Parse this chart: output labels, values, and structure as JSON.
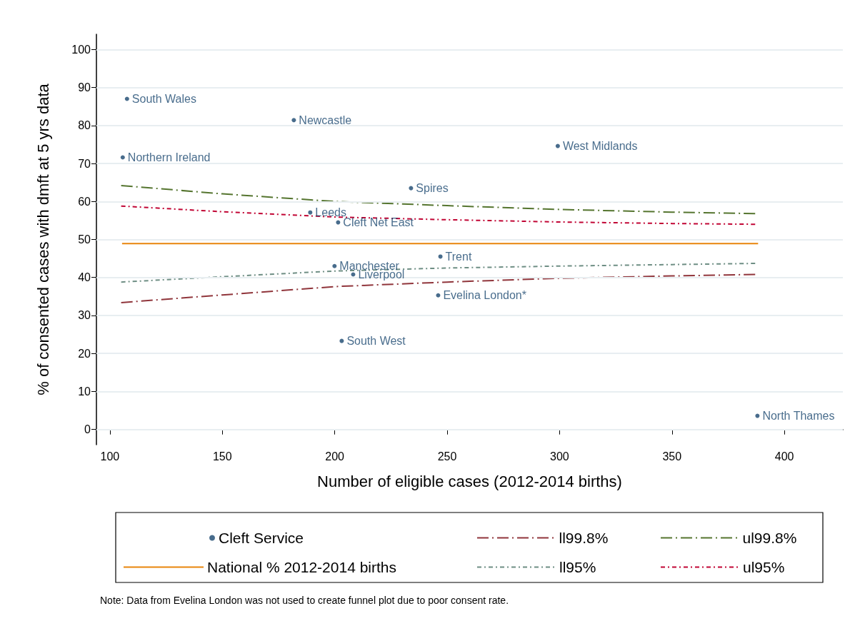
{
  "chart_data": {
    "type": "scatter",
    "xlabel": "Number of eligible cases (2012-2014 births)",
    "ylabel": "% of consented cases with dmft at 5 yrs data",
    "xlim": [
      94,
      426
    ],
    "xticks": [
      100,
      150,
      200,
      250,
      300,
      350,
      400
    ],
    "ylim": [
      -4,
      104
    ],
    "yticks": [
      0,
      10,
      20,
      30,
      40,
      50,
      60,
      70,
      80,
      90,
      100
    ],
    "grid": "y",
    "legend": "bottom",
    "series": [
      {
        "name": "Cleft Service",
        "marker": "circle",
        "color": "#1a476f",
        "x": [
          107.6,
          181.8,
          105.7,
          299.2,
          233.9,
          189.1,
          201.5,
          199.9,
          208.2,
          247,
          246,
          203.1,
          388
        ],
        "values": [
          87.0,
          81.4,
          71.6,
          74.6,
          63.5,
          57.1,
          54.5,
          43.0,
          40.8,
          45.5,
          35.3,
          23.3,
          3.6
        ],
        "value_labels": [
          "South Wales",
          "Newcastle",
          "Northern Ireland",
          "West Midlands",
          "Spires",
          "Leeds",
          "Cleft Net East",
          "Manchester",
          "Liverpool",
          "Trent",
          "Evelina London*",
          "South West",
          "North Thames"
        ]
      },
      {
        "name": "National % 2012-2014 births",
        "type": "line",
        "color": "#e8850c",
        "line_style": "solid",
        "x": [
          105.4,
          388.3
        ],
        "values": [
          48.9,
          48.9
        ]
      },
      {
        "name": "ll99.8%",
        "type": "line",
        "color": "#90353b",
        "line_style": "dashed",
        "x": [
          105,
          150,
          200,
          250,
          300,
          350,
          387
        ],
        "values": [
          33.4,
          35.4,
          37.6,
          38.8,
          39.8,
          40.4,
          40.8
        ]
      },
      {
        "name": "ll95%",
        "type": "line",
        "color": "#6e8e84",
        "line_style": "dotted",
        "x": [
          105,
          150,
          200,
          250,
          300,
          350,
          387
        ],
        "values": [
          38.8,
          40.2,
          41.7,
          42.5,
          43.0,
          43.4,
          43.7
        ]
      },
      {
        "name": "ul99.8%",
        "type": "line",
        "color": "#55752f",
        "line_style": "dashed",
        "x": [
          105,
          150,
          200,
          250,
          300,
          350,
          387
        ],
        "values": [
          64.2,
          62.0,
          60.0,
          58.9,
          57.9,
          57.2,
          56.8
        ]
      },
      {
        "name": "ul95%",
        "type": "line",
        "color": "#c10534",
        "line_style": "dotted",
        "x": [
          105,
          150,
          200,
          250,
          300,
          350,
          387
        ],
        "values": [
          58.8,
          57.3,
          55.9,
          55.2,
          54.6,
          54.2,
          54.0
        ]
      }
    ],
    "annotations": [
      "Note: Data from Evelina London was not used to create funnel plot due to poor consent rate."
    ]
  }
}
